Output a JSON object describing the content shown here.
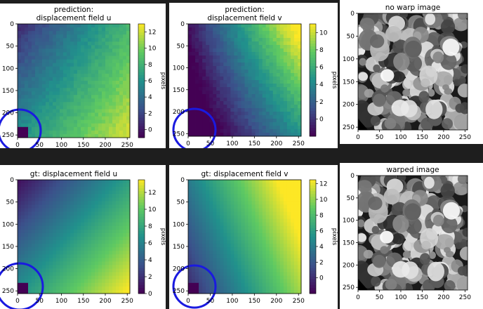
{
  "chart_data": [
    {
      "id": "pred-u",
      "type": "heatmap",
      "title": [
        "prediction:",
        "displacement field u"
      ],
      "field": "u",
      "prediction": true,
      "xticks": [
        "0",
        "50",
        "100",
        "150",
        "200",
        "250"
      ],
      "yticks": [
        "0",
        "50",
        "100",
        "150",
        "200",
        "250"
      ],
      "xlim": [
        0,
        256
      ],
      "ylim": [
        256,
        0
      ],
      "colorbar": {
        "label": "pixels",
        "range": [
          -1,
          13
        ],
        "ticks": [
          {
            "v": 12,
            "t": "12"
          },
          {
            "v": 10,
            "t": "10"
          },
          {
            "v": 8,
            "t": "8"
          },
          {
            "v": 6,
            "t": "6"
          },
          {
            "v": 4,
            "t": "4"
          },
          {
            "v": 2,
            "t": "2"
          },
          {
            "v": 0,
            "t": "0"
          }
        ]
      },
      "annotation": "blue-circle-bottom-left"
    },
    {
      "id": "pred-v",
      "type": "heatmap",
      "title": [
        "prediction:",
        "displacement field v"
      ],
      "field": "v",
      "prediction": true,
      "xticks": [
        "0",
        "50",
        "100",
        "150",
        "200",
        "250"
      ],
      "yticks": [
        "0",
        "50",
        "100",
        "150",
        "200",
        "250"
      ],
      "xlim": [
        0,
        256
      ],
      "ylim": [
        256,
        0
      ],
      "colorbar": {
        "label": "pixels",
        "range": [
          -2,
          11
        ],
        "ticks": [
          {
            "v": 10,
            "t": "10"
          },
          {
            "v": 8,
            "t": "8"
          },
          {
            "v": 6,
            "t": "6"
          },
          {
            "v": 4,
            "t": "4"
          },
          {
            "v": 2,
            "t": "2"
          },
          {
            "v": 0,
            "t": "0"
          }
        ]
      },
      "annotation": "blue-circle-bottom-left"
    },
    {
      "id": "gt-u",
      "type": "heatmap",
      "title": [
        "gt: displacement field u"
      ],
      "field": "u",
      "prediction": false,
      "xticks": [
        "0",
        "50",
        "100",
        "150",
        "200",
        "250"
      ],
      "yticks": [
        "0",
        "50",
        "100",
        "150",
        "200",
        "250"
      ],
      "xlim": [
        0,
        256
      ],
      "ylim": [
        256,
        0
      ],
      "colorbar": {
        "label": "pixels",
        "range": [
          0,
          13.5
        ],
        "ticks": [
          {
            "v": 12,
            "t": "12"
          },
          {
            "v": 10,
            "t": "10"
          },
          {
            "v": 8,
            "t": "8"
          },
          {
            "v": 6,
            "t": "6"
          },
          {
            "v": 4,
            "t": "4"
          },
          {
            "v": 2,
            "t": "2"
          },
          {
            "v": 0,
            "t": "0"
          }
        ]
      },
      "annotation": "blue-circle-bottom-left"
    },
    {
      "id": "gt-v",
      "type": "heatmap",
      "title": [
        "gt: displacement field v"
      ],
      "field": "v",
      "prediction": false,
      "xticks": [
        "0",
        "50",
        "100",
        "150",
        "200",
        "250"
      ],
      "yticks": [
        "0",
        "50",
        "100",
        "150",
        "200",
        "250"
      ],
      "xlim": [
        0,
        256
      ],
      "ylim": [
        256,
        0
      ],
      "colorbar": {
        "label": "pixels",
        "range": [
          -2,
          12.5
        ],
        "ticks": [
          {
            "v": 12,
            "t": "12"
          },
          {
            "v": 10,
            "t": "10"
          },
          {
            "v": 8,
            "t": "8"
          },
          {
            "v": 6,
            "t": "6"
          },
          {
            "v": 4,
            "t": "4"
          },
          {
            "v": 2,
            "t": "2"
          },
          {
            "v": 0,
            "t": "0"
          }
        ]
      },
      "annotation": "blue-circle-bottom-left"
    },
    {
      "id": "no-warp",
      "type": "image",
      "title": [
        "no warp image"
      ],
      "xticks": [
        "0",
        "50",
        "100",
        "150",
        "200",
        "250"
      ],
      "yticks": [
        "0",
        "50",
        "100",
        "150",
        "200",
        "250"
      ],
      "xlim": [
        0,
        256
      ],
      "ylim": [
        256,
        0
      ],
      "warped": false
    },
    {
      "id": "warped",
      "type": "image",
      "title": [
        "warped image"
      ],
      "xticks": [
        "0",
        "50",
        "100",
        "150",
        "200",
        "250"
      ],
      "yticks": [
        "0",
        "50",
        "100",
        "150",
        "200",
        "250"
      ],
      "xlim": [
        0,
        256
      ],
      "ylim": [
        256,
        0
      ],
      "warped": true
    }
  ],
  "colors": {
    "colormap": [
      "#440154",
      "#3b528b",
      "#21918c",
      "#5ec962",
      "#fde725"
    ],
    "annotation_circle": "#1a1ae0",
    "separator": "#1e1e1e"
  }
}
